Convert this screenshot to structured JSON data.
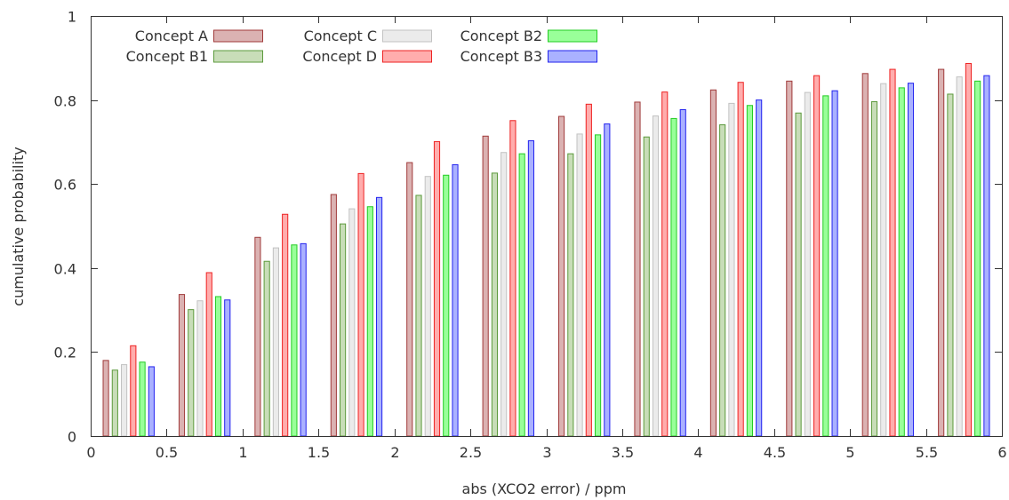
{
  "chart_data": {
    "type": "bar",
    "title": "",
    "xlabel": "abs (XCO2 error) / ppm",
    "ylabel": "cumulative probability",
    "xlim": [
      0,
      6
    ],
    "ylim": [
      0,
      1
    ],
    "x_ticks": [
      "0",
      "0.5",
      "1",
      "1.5",
      "2",
      "2.5",
      "3",
      "3.5",
      "4",
      "4.5",
      "5",
      "5.5",
      "6"
    ],
    "y_ticks": [
      "0",
      "0.2",
      "0.4",
      "0.6",
      "0.8",
      "1"
    ],
    "grid": false,
    "legend_position": "top-left",
    "x": [
      0.25,
      0.75,
      1.25,
      1.75,
      2.25,
      2.75,
      3.25,
      3.75,
      4.25,
      4.75,
      5.25,
      5.75
    ],
    "series": [
      {
        "name": "Concept A",
        "color": "#a03a3a",
        "fill": "#dbb2b2",
        "values": [
          0.18,
          0.337,
          0.473,
          0.575,
          0.651,
          0.714,
          0.761,
          0.795,
          0.824,
          0.845,
          0.863,
          0.873
        ]
      },
      {
        "name": "Concept B1",
        "color": "#5c9a3c",
        "fill": "#c8ddb8",
        "values": [
          0.157,
          0.301,
          0.416,
          0.505,
          0.573,
          0.626,
          0.672,
          0.712,
          0.741,
          0.769,
          0.796,
          0.814
        ]
      },
      {
        "name": "Concept C",
        "color": "#c2c2c2",
        "fill": "#ebebeb",
        "values": [
          0.17,
          0.322,
          0.448,
          0.541,
          0.618,
          0.675,
          0.719,
          0.762,
          0.792,
          0.818,
          0.839,
          0.855
        ]
      },
      {
        "name": "Concept D",
        "color": "#ee2222",
        "fill": "#ffadad",
        "values": [
          0.215,
          0.389,
          0.528,
          0.625,
          0.701,
          0.751,
          0.79,
          0.819,
          0.842,
          0.858,
          0.873,
          0.887
        ]
      },
      {
        "name": "Concept B2",
        "color": "#22cc22",
        "fill": "#99ff99",
        "values": [
          0.176,
          0.332,
          0.455,
          0.546,
          0.621,
          0.672,
          0.717,
          0.756,
          0.787,
          0.81,
          0.829,
          0.845
        ]
      },
      {
        "name": "Concept B3",
        "color": "#2222ee",
        "fill": "#aab1ff",
        "values": [
          0.165,
          0.324,
          0.458,
          0.568,
          0.646,
          0.703,
          0.743,
          0.777,
          0.8,
          0.822,
          0.84,
          0.858
        ]
      }
    ]
  }
}
